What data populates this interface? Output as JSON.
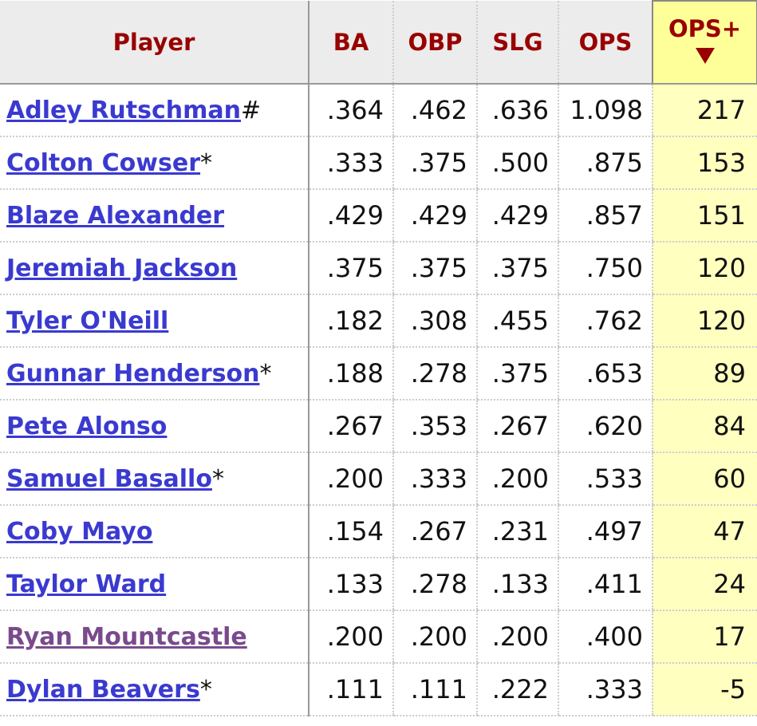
{
  "header": {
    "player": "Player",
    "columns": [
      "BA",
      "OBP",
      "SLG",
      "OPS",
      "OPS+"
    ]
  },
  "rows": [
    {
      "player": "Adley Rutschman",
      "suffix": "#",
      "ba": ".364",
      "obp": ".462",
      "slg": ".636",
      "ops": "1.098",
      "ops_plus": 217
    },
    {
      "player": "Colton Cowser",
      "suffix": "*",
      "ba": ".333",
      "obp": ".375",
      "slg": ".500",
      "ops": ".875",
      "ops_plus": 153
    },
    {
      "player": "Blaze Alexander",
      "ba": ".429",
      "obp": ".429",
      "slg": ".429",
      "ops": ".857",
      "ops_plus": 151
    },
    {
      "player": "Jeremiah Jackson",
      "ba": ".375",
      "obp": ".375",
      "slg": ".375",
      "ops": ".750",
      "ops_plus": 120
    },
    {
      "player": "Tyler O'Neill",
      "ba": ".182",
      "obp": ".308",
      "slg": ".455",
      "ops": ".762",
      "ops_plus": 120
    },
    {
      "player": "Gunnar Henderson",
      "suffix": "*",
      "ba": ".188",
      "obp": ".278",
      "slg": ".375",
      "ops": ".653",
      "ops_plus": 89
    },
    {
      "player": "Pete Alonso",
      "ba": ".267",
      "obp": ".353",
      "slg": ".267",
      "ops": ".620",
      "ops_plus": 84
    },
    {
      "player": "Samuel Basallo",
      "suffix": "*",
      "ba": ".200",
      "obp": ".333",
      "slg": ".200",
      "ops": ".533",
      "ops_plus": 60
    },
    {
      "player": "Coby Mayo",
      "ba": ".154",
      "obp": ".267",
      "slg": ".231",
      "ops": ".497",
      "ops_plus": 47
    },
    {
      "player": "Taylor Ward",
      "ba": ".133",
      "obp": ".278",
      "slg": ".133",
      "ops": ".411",
      "ops_plus": 24
    },
    {
      "player": "Ryan Mountcastle",
      "visited": true,
      "ba": ".200",
      "obp": ".200",
      "slg": ".200",
      "ops": ".400",
      "ops_plus": 17
    },
    {
      "player": "Dylan Beavers",
      "suffix": "*",
      "ba": ".111",
      "obp": ".111",
      "slg": ".222",
      "ops": ".333",
      "ops_plus": -5
    }
  ]
}
